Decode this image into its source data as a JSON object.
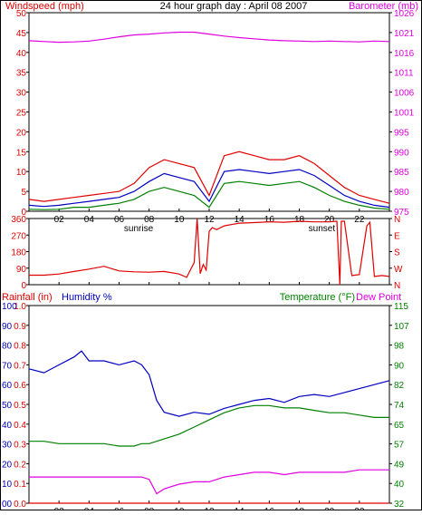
{
  "header": {
    "title": "24 hour graph day : April 08 2007",
    "left_label": "Windspeed (mph)",
    "right_label": "Barometer (mb)"
  },
  "colors": {
    "red": "#e00000",
    "blue": "#0000c0",
    "green": "#008000",
    "magenta": "#e000e0",
    "frame": "#000000",
    "background": "#ffffff"
  },
  "chart_data": [
    {
      "id": "wind-baro",
      "type": "line",
      "title": "24 hour graph day : April 08 2007",
      "ylabel_left": "Windspeed (mph)",
      "ylabel_right": "Barometer (mb)",
      "y_left_ticks": [
        "0",
        "5",
        "10",
        "15",
        "20",
        "25",
        "30",
        "35",
        "40",
        "45",
        "50"
      ],
      "y_right_ticks": [
        "975",
        "980",
        "985",
        "990",
        "995",
        "1001",
        "1006",
        "1011",
        "1016",
        "1021",
        "1026"
      ],
      "x_ticks": [
        "02",
        "04",
        "06",
        "08",
        "10",
        "12",
        "14",
        "16",
        "18",
        "20",
        "22"
      ],
      "x_annotations": [
        "sunrise",
        "sunset"
      ],
      "xlim": [
        0,
        24
      ],
      "ylim_left": [
        0,
        50
      ],
      "ylim_right": [
        975,
        1026
      ],
      "x": [
        0,
        1,
        2,
        3,
        4,
        5,
        6,
        7,
        8,
        9,
        10,
        11,
        12,
        13,
        14,
        15,
        16,
        17,
        18,
        19,
        20,
        21,
        22,
        23,
        24
      ],
      "series": [
        {
          "color": "#e00000",
          "axis": "left",
          "values": [
            3,
            2.5,
            3,
            3.5,
            4,
            4.5,
            5,
            7,
            11,
            13,
            12,
            11,
            4,
            14,
            15,
            14,
            13,
            13,
            14,
            12,
            9,
            6,
            4,
            3,
            2
          ]
        },
        {
          "color": "#0000c0",
          "axis": "left",
          "values": [
            1.5,
            1.2,
            1.5,
            2,
            2.5,
            3,
            3.5,
            5,
            7.5,
            9.5,
            8.5,
            7.5,
            2.5,
            10,
            10.5,
            10,
            9.5,
            10,
            10.5,
            9,
            6.5,
            4,
            2.5,
            1.5,
            1
          ]
        },
        {
          "color": "#008000",
          "axis": "left",
          "values": [
            0.5,
            0.4,
            0.5,
            1,
            1,
            1.5,
            2,
            3,
            5,
            6,
            5,
            4,
            1,
            7,
            7.5,
            7,
            6.5,
            7,
            7.5,
            6,
            4,
            2.5,
            1.5,
            0.8,
            0.5
          ]
        },
        {
          "color": "#e000e0",
          "axis": "right",
          "values": [
            1018.8,
            1018.6,
            1018.4,
            1018.5,
            1018.7,
            1019.2,
            1019.8,
            1020.3,
            1020.5,
            1020.8,
            1021.0,
            1021.0,
            1020.5,
            1020.0,
            1019.6,
            1019.3,
            1019.0,
            1018.8,
            1018.7,
            1018.6,
            1018.7,
            1018.6,
            1018.5,
            1018.7,
            1018.6
          ]
        }
      ]
    },
    {
      "id": "direction",
      "type": "line",
      "y_left_ticks": [
        "0",
        "90",
        "180",
        "270",
        "360"
      ],
      "y_right_ticks": [
        "N",
        "W",
        "S",
        "E",
        "N"
      ],
      "x_ticks": [
        "02",
        "04",
        "06",
        "08",
        "10",
        "12",
        "14",
        "16",
        "18",
        "20",
        "22"
      ],
      "xlim": [
        0,
        24
      ],
      "ylim": [
        0,
        360
      ],
      "x": [
        0,
        1,
        2,
        3,
        4,
        5,
        6,
        7,
        8,
        9,
        10,
        10.5,
        11,
        11.2,
        11.4,
        11.6,
        11.8,
        12,
        12.2,
        12.5,
        13,
        14,
        15,
        16,
        17,
        18,
        19,
        20,
        20.5,
        20.7,
        20.8,
        21,
        21.5,
        22,
        22.5,
        22.7,
        23,
        23.5,
        24
      ],
      "series": [
        {
          "color": "#e00000",
          "axis": "left",
          "values": [
            52,
            52,
            58,
            72,
            85,
            100,
            75,
            70,
            68,
            72,
            58,
            40,
            120,
            360,
            60,
            110,
            80,
            290,
            310,
            300,
            320,
            335,
            338,
            342,
            340,
            345,
            342,
            342,
            345,
            0,
            345,
            345,
            50,
            55,
            320,
            340,
            45,
            50,
            45
          ]
        }
      ]
    },
    {
      "id": "rain-humidity-temp",
      "type": "line",
      "ylabel_left_1": "Rainfall (in)",
      "ylabel_left_2": "Humidity %",
      "ylabel_right_1": "Temperature (°F)",
      "ylabel_right_2": "Dew Point",
      "y_left_ticks_1": [
        "0.0",
        "0.1",
        "0.2",
        "0.3",
        "0.4",
        "0.5",
        "0.6",
        "0.7",
        "0.8",
        "0.9",
        "1.0"
      ],
      "y_left_ticks_2": [
        "00",
        "10",
        "20",
        "30",
        "40",
        "50",
        "60",
        "70",
        "80",
        "90",
        "100"
      ],
      "y_right_ticks": [
        "32",
        "40",
        "49",
        "57",
        "65",
        "74",
        "82",
        "90",
        "98",
        "107",
        "115"
      ],
      "x_ticks": [
        "02",
        "04",
        "06",
        "08",
        "10",
        "12",
        "14",
        "16",
        "18",
        "20",
        "22"
      ],
      "x_annotations": [
        "sunrise",
        "sunset"
      ],
      "xlim": [
        0,
        24
      ],
      "ylim_left": [
        0,
        100
      ],
      "ylim_right": [
        32,
        115
      ],
      "x": [
        0,
        1,
        2,
        3,
        3.5,
        4,
        5,
        6,
        7,
        7.5,
        8,
        8.5,
        9,
        10,
        11,
        12,
        13,
        14,
        15,
        16,
        17,
        18,
        19,
        20,
        21,
        22,
        23,
        24
      ],
      "series": [
        {
          "color": "#0000c0",
          "axis": "left",
          "values": [
            68,
            66,
            70,
            74,
            77,
            72,
            72,
            70,
            72,
            70,
            65,
            52,
            46,
            44,
            46,
            45,
            48,
            50,
            52,
            53,
            51,
            54,
            55,
            54,
            56,
            58,
            60,
            62
          ]
        },
        {
          "color": "#008000",
          "axis": "right",
          "values": [
            58,
            58,
            57,
            57,
            57,
            57,
            57,
            56,
            56,
            57,
            57,
            58,
            59,
            61,
            64,
            67,
            70,
            72,
            73,
            73,
            72,
            72,
            71,
            70,
            70,
            69,
            68,
            68
          ]
        },
        {
          "color": "#e000e0",
          "axis": "right",
          "values": [
            43,
            43,
            43,
            43,
            43,
            43,
            43,
            43,
            43,
            43,
            42,
            36,
            38,
            40,
            41,
            41,
            43,
            44,
            45,
            45,
            44,
            45,
            45,
            45,
            45,
            46,
            46,
            46
          ]
        },
        {
          "color": "#e00000",
          "axis": "left",
          "values": [
            0,
            0,
            0,
            0,
            0,
            0,
            0,
            0,
            0,
            0,
            0,
            0,
            0,
            0,
            0,
            0,
            0,
            0,
            0,
            0,
            0,
            0,
            0,
            0,
            0,
            0,
            0,
            0
          ]
        }
      ]
    }
  ]
}
